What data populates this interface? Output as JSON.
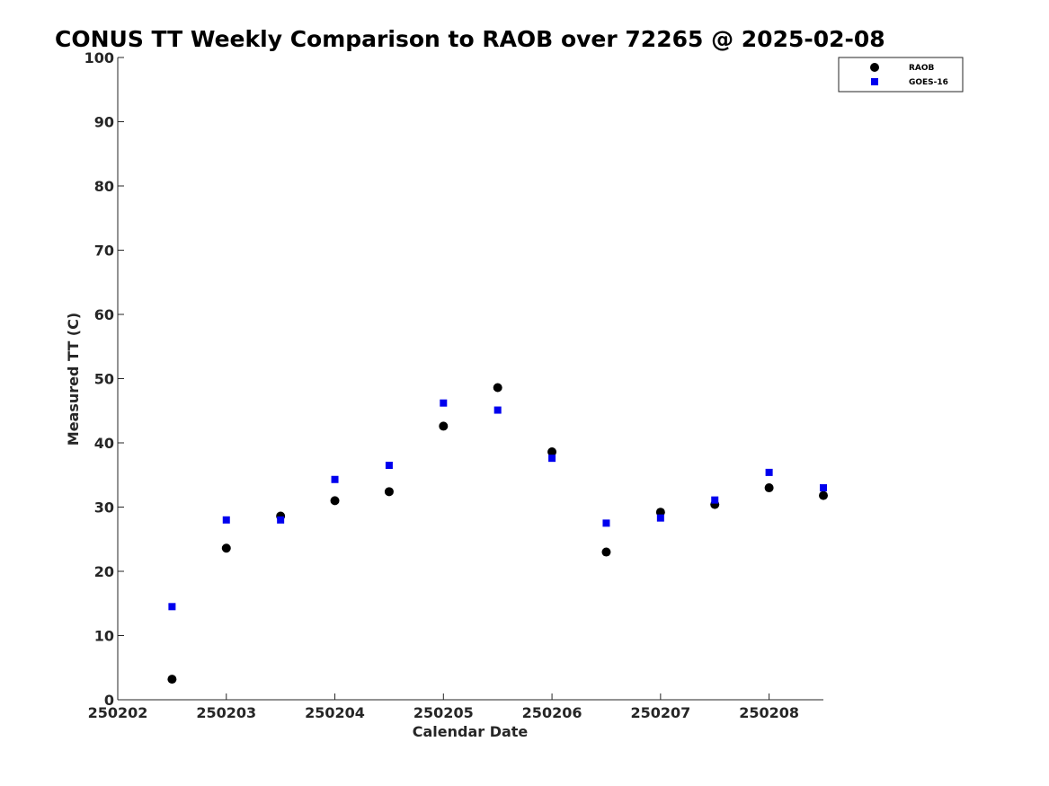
{
  "chart_data": {
    "type": "scatter",
    "title": "CONUS TT Weekly Comparison to RAOB over 72265 @ 2025-02-08",
    "xlabel": "Calendar Date",
    "ylabel": "Measured TT (C)",
    "xlim": [
      0,
      6.5
    ],
    "ylim": [
      0,
      100
    ],
    "x_ticks": [
      0,
      1,
      2,
      3,
      4,
      5,
      6
    ],
    "x_tick_labels": [
      "250202",
      "250203",
      "250204",
      "250205",
      "250206",
      "250207",
      "250208"
    ],
    "y_ticks": [
      0,
      10,
      20,
      30,
      40,
      50,
      60,
      70,
      80,
      90,
      100
    ],
    "y_tick_labels": [
      "0",
      "10",
      "20",
      "30",
      "40",
      "50",
      "60",
      "70",
      "80",
      "90",
      "100"
    ],
    "x": [
      0.5,
      1.0,
      1.5,
      2.0,
      2.5,
      3.0,
      3.5,
      4.0,
      4.5,
      5.0,
      5.5,
      6.0,
      6.5
    ],
    "series": [
      {
        "name": "RAOB",
        "marker": "circle",
        "color": "#000000",
        "values": [
          3.2,
          23.6,
          28.6,
          31.0,
          32.4,
          42.6,
          48.6,
          38.6,
          23.0,
          29.2,
          30.4,
          33.0,
          31.8
        ]
      },
      {
        "name": "GOES-16",
        "marker": "square",
        "color": "#0000ee",
        "values": [
          14.5,
          28.0,
          28.0,
          34.3,
          36.5,
          46.2,
          45.1,
          37.6,
          27.5,
          28.3,
          31.1,
          35.4,
          33.0
        ]
      }
    ],
    "legend": {
      "position": "top-right",
      "entries": [
        "RAOB",
        "GOES-16"
      ]
    },
    "grid": false
  }
}
